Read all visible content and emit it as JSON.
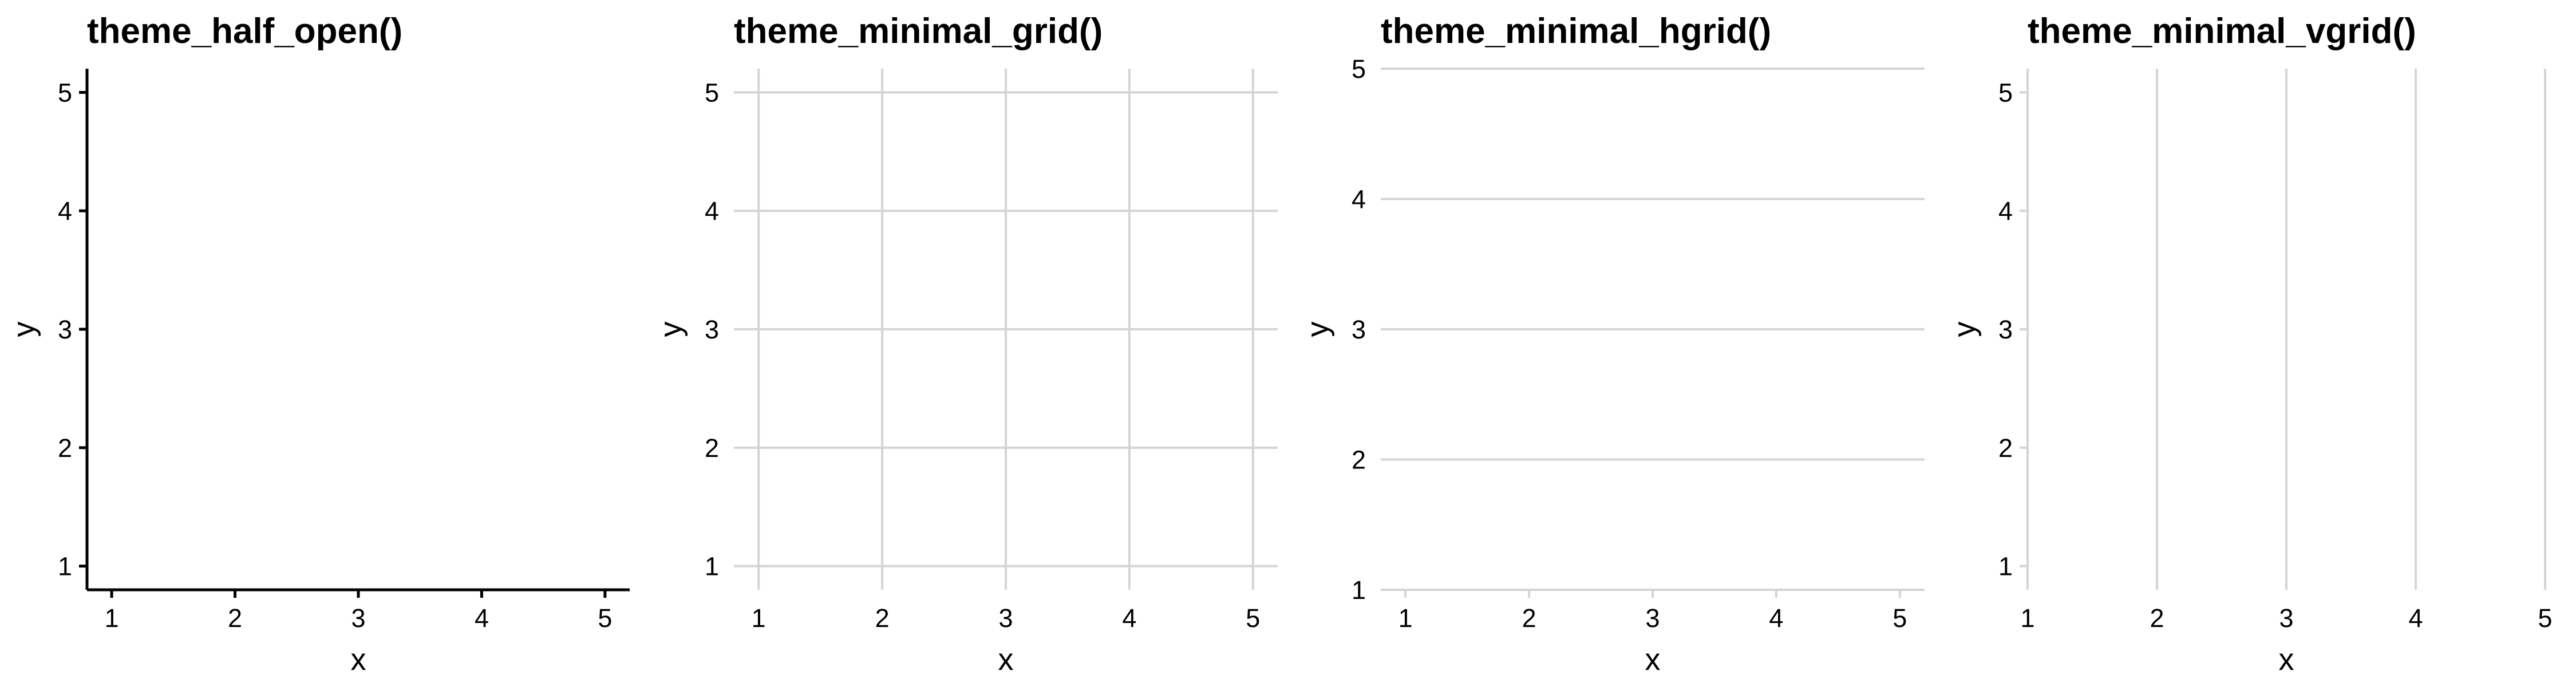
{
  "colors": {
    "background": "#ffffff",
    "axis_line": "#000000",
    "grid_line": "#d4d4d4",
    "text": "#000000"
  },
  "chart_data": [
    {
      "type": "scatter",
      "title": "theme_half_open()",
      "xlabel": "x",
      "ylabel": "y",
      "x_ticks": [
        "1",
        "2",
        "3",
        "4",
        "5"
      ],
      "y_ticks": [
        "1",
        "2",
        "3",
        "4",
        "5"
      ],
      "xlim": [
        0.8,
        5.2
      ],
      "ylim": [
        0.8,
        5.2
      ],
      "grid": "none",
      "axis_lines": "left and bottom",
      "tick_marks": true,
      "points": []
    },
    {
      "type": "scatter",
      "title": "theme_minimal_grid()",
      "xlabel": "x",
      "ylabel": "y",
      "x_ticks": [
        "1",
        "2",
        "3",
        "4",
        "5"
      ],
      "y_ticks": [
        "1",
        "2",
        "3",
        "4",
        "5"
      ],
      "xlim": [
        0.8,
        5.2
      ],
      "ylim": [
        0.8,
        5.2
      ],
      "grid": "both",
      "axis_lines": "none",
      "tick_marks": false,
      "points": []
    },
    {
      "type": "scatter",
      "title": "theme_minimal_hgrid()",
      "xlabel": "x",
      "ylabel": "y",
      "x_ticks": [
        "1",
        "2",
        "3",
        "4",
        "5"
      ],
      "y_ticks": [
        "1",
        "2",
        "3",
        "4",
        "5"
      ],
      "xlim": [
        0.8,
        5.2
      ],
      "ylim": [
        1,
        5
      ],
      "grid": "horizontal",
      "axis_lines": "bottom",
      "tick_marks": true,
      "points": []
    },
    {
      "type": "scatter",
      "title": "theme_minimal_vgrid()",
      "xlabel": "x",
      "ylabel": "y",
      "x_ticks": [
        "1",
        "2",
        "3",
        "4",
        "5"
      ],
      "y_ticks": [
        "1",
        "2",
        "3",
        "4",
        "5"
      ],
      "xlim": [
        1,
        5
      ],
      "ylim": [
        0.8,
        5.2
      ],
      "grid": "vertical",
      "axis_lines": "left",
      "tick_marks": true,
      "points": []
    }
  ]
}
